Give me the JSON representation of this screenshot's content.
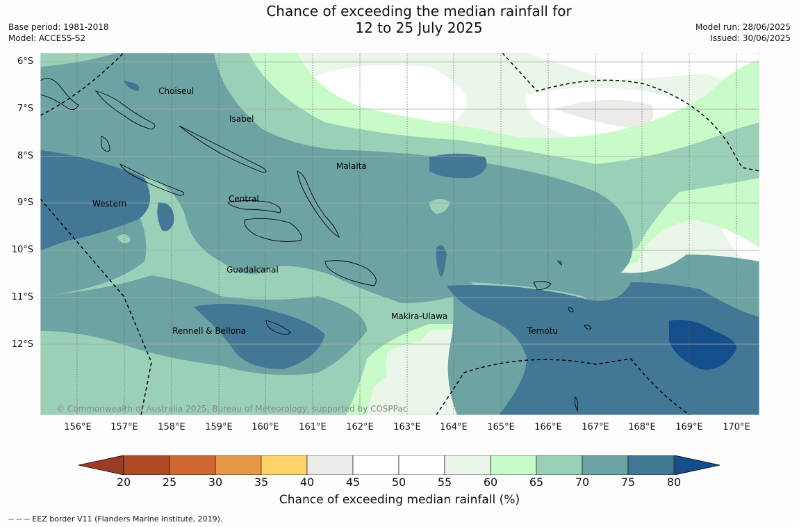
{
  "title": {
    "line1": "Chance of exceeding the median rainfall for",
    "line2": "12 to 25 July 2025"
  },
  "meta_left": {
    "base_period": "Base period: 1981-2018",
    "model": "Model: ACCESS-S2"
  },
  "meta_right": {
    "model_run": "Model run: 28/06/2025",
    "issued": "Issued: 30/06/2025"
  },
  "lat_labels": [
    "6°S",
    "7°S",
    "8°S",
    "9°S",
    "10°S",
    "11°S",
    "12°S"
  ],
  "lon_labels": [
    "156°E",
    "157°E",
    "158°E",
    "159°E",
    "160°E",
    "161°E",
    "162°E",
    "163°E",
    "164°E",
    "165°E",
    "166°E",
    "167°E",
    "168°E",
    "169°E",
    "170°E"
  ],
  "places": [
    "Choiseul",
    "Isabel",
    "Malaita",
    "Western",
    "Central",
    "Guadalcanal",
    "Makira-Ulawa",
    "Rennell & Bellona",
    "Temotu"
  ],
  "copyright": "© Commonwealth of Australia 2025, Bureau of Meteorology, supported by COSPPac",
  "colorbar": {
    "ticks": [
      "20",
      "25",
      "30",
      "35",
      "40",
      "45",
      "50",
      "55",
      "60",
      "65",
      "70",
      "75",
      "80"
    ],
    "colors": [
      "#b04a25",
      "#d0672f",
      "#e69748",
      "#fdd36a",
      "#edebe7",
      "#ffffff",
      "#ffffff",
      "#eaf6ea",
      "#c8fbc8",
      "#9bd0b8",
      "#6ea3a4",
      "#427896"
    ],
    "low_extend_color": "#9a3d24",
    "high_extend_color": "#154f8b",
    "label": "Chance of exceeding median rainfall (%)"
  },
  "footer": "--  --  -- EEZ border V11 (Flanders Marine Institute, 2019)."
}
